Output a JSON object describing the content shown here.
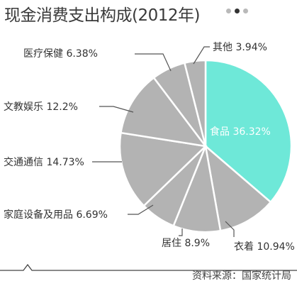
{
  "header": {
    "title": "现金消费支出构成(2012年)"
  },
  "pager": {
    "dots": 3,
    "active_index": 1,
    "colors": {
      "inactive": "#b9b9b9",
      "active": "#333333"
    }
  },
  "footer": {
    "source": "资料来源：国家统计局"
  },
  "colors": {
    "highlight": "#6ee8d8",
    "slice": "#b3b3b3",
    "stroke": "#ffffff",
    "leader": "#555555",
    "baseline": "#444444"
  },
  "chart_data": {
    "type": "pie",
    "title": "现金消费支出构成(2012年)",
    "start_angle_deg": 0,
    "direction": "clockwise",
    "slices": [
      {
        "name": "食品",
        "value": 36.32,
        "display": "36.32%",
        "highlight": true
      },
      {
        "name": "衣着",
        "value": 10.94,
        "display": "10.94%"
      },
      {
        "name": "居住",
        "value": 8.9,
        "display": "8.9%"
      },
      {
        "name": "家庭设备及用品",
        "value": 6.69,
        "display": "6.69%"
      },
      {
        "name": "交通通信",
        "value": 14.73,
        "display": "14.73%"
      },
      {
        "name": "文教娱乐",
        "value": 12.2,
        "display": "12.2%"
      },
      {
        "name": "医疗保健",
        "value": 6.38,
        "display": "6.38%"
      },
      {
        "name": "其他",
        "value": 3.94,
        "display": "3.94%"
      }
    ]
  }
}
